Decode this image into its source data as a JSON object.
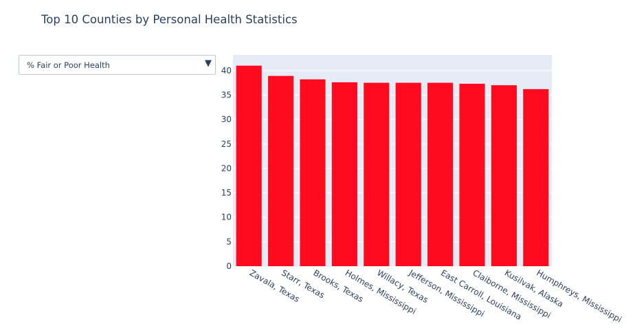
{
  "chart_data": {
    "type": "bar",
    "title": "Top 10 Counties by Personal Health Statistics",
    "xlabel": "",
    "ylabel": "",
    "categories": [
      "Zavala, Texas",
      "Starr, Texas",
      "Brooks, Texas",
      "Holmes, Mississippi",
      "Willacy, Texas",
      "Jefferson, Mississippi",
      "East Carroll, Louisiana",
      "Claiborne, Mississippi",
      "Kusilvak, Alaska",
      "Humphreys, Mississippi"
    ],
    "values": [
      41.0,
      38.9,
      38.2,
      37.6,
      37.5,
      37.5,
      37.5,
      37.3,
      37.0,
      36.2
    ],
    "ylim": [
      0,
      43.2
    ],
    "yticks": [
      0,
      5,
      10,
      15,
      20,
      25,
      30,
      35,
      40
    ],
    "grid": true,
    "bar_color": "#ff0a1e",
    "plot_bg": "#e5ecf6"
  },
  "dropdown": {
    "selected": "% Fair or Poor Health",
    "arrow_icon": "▼"
  }
}
